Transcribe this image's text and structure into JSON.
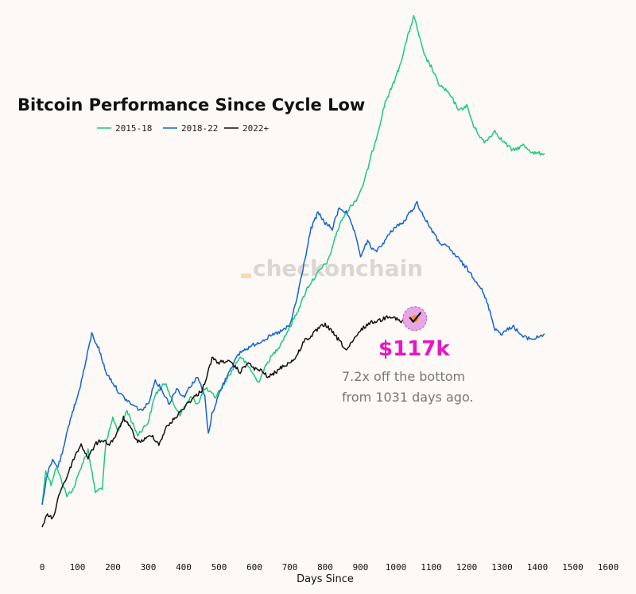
{
  "chart_data": {
    "type": "line",
    "title": "Bitcoin Performance Since Cycle Low",
    "xlabel": "Days Since",
    "ylabel": "",
    "xlim": [
      0,
      1600
    ],
    "x_ticks": [
      "0",
      "100",
      "200",
      "300",
      "400",
      "500",
      "600",
      "700",
      "800",
      "900",
      "1000",
      "1100",
      "1200",
      "1300",
      "1400",
      "1500",
      "1600"
    ],
    "y_scale": "log",
    "ylim": [
      0.7,
      150
    ],
    "grid": false,
    "legend_position": "top-left",
    "series": [
      {
        "name": "2015-18",
        "color": "#1dc97e",
        "points": [
          [
            0,
            1.1
          ],
          [
            10,
            1.55
          ],
          [
            25,
            1.35
          ],
          [
            40,
            1.6
          ],
          [
            55,
            1.4
          ],
          [
            70,
            1.2
          ],
          [
            90,
            1.3
          ],
          [
            110,
            1.6
          ],
          [
            130,
            1.9
          ],
          [
            150,
            1.25
          ],
          [
            170,
            1.3
          ],
          [
            180,
            2.0
          ],
          [
            200,
            2.6
          ],
          [
            215,
            2.3
          ],
          [
            240,
            2.8
          ],
          [
            270,
            2.2
          ],
          [
            300,
            2.5
          ],
          [
            320,
            3.3
          ],
          [
            350,
            3.7
          ],
          [
            370,
            3.0
          ],
          [
            390,
            2.7
          ],
          [
            420,
            3.2
          ],
          [
            440,
            3.0
          ],
          [
            460,
            3.5
          ],
          [
            490,
            3.2
          ],
          [
            530,
            4.0
          ],
          [
            560,
            4.8
          ],
          [
            590,
            4.2
          ],
          [
            610,
            3.7
          ],
          [
            640,
            4.6
          ],
          [
            670,
            5.3
          ],
          [
            700,
            6.4
          ],
          [
            730,
            8.0
          ],
          [
            750,
            9.5
          ],
          [
            770,
            10.5
          ],
          [
            790,
            11.5
          ],
          [
            810,
            12.5
          ],
          [
            830,
            16
          ],
          [
            850,
            19
          ],
          [
            870,
            21
          ],
          [
            890,
            23
          ],
          [
            910,
            27
          ],
          [
            930,
            35
          ],
          [
            950,
            45
          ],
          [
            970,
            60
          ],
          [
            990,
            70
          ],
          [
            1010,
            85
          ],
          [
            1030,
            110
          ],
          [
            1050,
            140
          ],
          [
            1060,
            125
          ],
          [
            1080,
            95
          ],
          [
            1100,
            85
          ],
          [
            1120,
            72
          ],
          [
            1150,
            65
          ],
          [
            1180,
            55
          ],
          [
            1200,
            58
          ],
          [
            1220,
            47
          ],
          [
            1250,
            40
          ],
          [
            1280,
            45
          ],
          [
            1300,
            41
          ],
          [
            1330,
            37
          ],
          [
            1360,
            39
          ],
          [
            1390,
            36
          ],
          [
            1420,
            36
          ]
        ]
      },
      {
        "name": "2018-22",
        "color": "#1463d0",
        "points": [
          [
            0,
            1.1
          ],
          [
            15,
            1.5
          ],
          [
            30,
            1.7
          ],
          [
            45,
            1.6
          ],
          [
            60,
            1.9
          ],
          [
            80,
            2.6
          ],
          [
            100,
            3.2
          ],
          [
            120,
            4.3
          ],
          [
            140,
            6.0
          ],
          [
            160,
            5.2
          ],
          [
            180,
            4.1
          ],
          [
            200,
            3.7
          ],
          [
            220,
            3.3
          ],
          [
            250,
            3.0
          ],
          [
            280,
            2.8
          ],
          [
            300,
            3.0
          ],
          [
            320,
            3.8
          ],
          [
            340,
            3.4
          ],
          [
            360,
            3.0
          ],
          [
            380,
            3.5
          ],
          [
            400,
            3.2
          ],
          [
            420,
            3.6
          ],
          [
            440,
            3.9
          ],
          [
            460,
            3.2
          ],
          [
            470,
            2.2
          ],
          [
            480,
            2.7
          ],
          [
            500,
            3.3
          ],
          [
            530,
            4.2
          ],
          [
            560,
            5.0
          ],
          [
            600,
            5.4
          ],
          [
            640,
            5.8
          ],
          [
            680,
            6.2
          ],
          [
            700,
            6.5
          ],
          [
            720,
            8.5
          ],
          [
            740,
            12
          ],
          [
            760,
            17
          ],
          [
            780,
            20
          ],
          [
            800,
            18
          ],
          [
            820,
            17
          ],
          [
            840,
            21
          ],
          [
            860,
            20
          ],
          [
            880,
            17
          ],
          [
            900,
            13
          ],
          [
            920,
            15
          ],
          [
            940,
            13.5
          ],
          [
            960,
            14.5
          ],
          [
            980,
            16
          ],
          [
            1000,
            17.5
          ],
          [
            1020,
            18
          ],
          [
            1040,
            20
          ],
          [
            1060,
            22
          ],
          [
            1080,
            19
          ],
          [
            1100,
            17
          ],
          [
            1120,
            15
          ],
          [
            1150,
            14
          ],
          [
            1180,
            12.5
          ],
          [
            1210,
            11
          ],
          [
            1240,
            9.5
          ],
          [
            1260,
            8.0
          ],
          [
            1280,
            6.3
          ],
          [
            1300,
            6.0
          ],
          [
            1330,
            6.5
          ],
          [
            1360,
            5.8
          ],
          [
            1390,
            5.7
          ],
          [
            1420,
            6.0
          ]
        ]
      },
      {
        "name": "2022+",
        "color": "#111111",
        "points": [
          [
            0,
            0.88
          ],
          [
            15,
            1.0
          ],
          [
            30,
            0.95
          ],
          [
            50,
            1.25
          ],
          [
            70,
            1.45
          ],
          [
            90,
            1.75
          ],
          [
            110,
            2.0
          ],
          [
            130,
            1.75
          ],
          [
            150,
            2.0
          ],
          [
            170,
            2.1
          ],
          [
            190,
            2.0
          ],
          [
            210,
            2.2
          ],
          [
            230,
            2.6
          ],
          [
            250,
            2.35
          ],
          [
            270,
            2.05
          ],
          [
            290,
            2.1
          ],
          [
            310,
            2.2
          ],
          [
            330,
            2.0
          ],
          [
            350,
            2.35
          ],
          [
            370,
            2.55
          ],
          [
            390,
            2.75
          ],
          [
            410,
            3.0
          ],
          [
            430,
            3.2
          ],
          [
            450,
            3.4
          ],
          [
            465,
            3.9
          ],
          [
            480,
            4.7
          ],
          [
            500,
            4.5
          ],
          [
            520,
            4.6
          ],
          [
            540,
            4.4
          ],
          [
            560,
            4.1
          ],
          [
            580,
            4.5
          ],
          [
            600,
            4.25
          ],
          [
            620,
            4.15
          ],
          [
            640,
            3.9
          ],
          [
            660,
            4.1
          ],
          [
            680,
            4.35
          ],
          [
            700,
            4.5
          ],
          [
            720,
            4.8
          ],
          [
            740,
            5.6
          ],
          [
            760,
            5.85
          ],
          [
            780,
            6.3
          ],
          [
            800,
            6.6
          ],
          [
            820,
            6.1
          ],
          [
            840,
            5.6
          ],
          [
            860,
            5.1
          ],
          [
            880,
            5.6
          ],
          [
            900,
            6.2
          ],
          [
            920,
            6.6
          ],
          [
            940,
            6.8
          ],
          [
            960,
            6.9
          ],
          [
            980,
            7.2
          ],
          [
            1000,
            7.0
          ],
          [
            1015,
            6.7
          ],
          [
            1031,
            7.2
          ]
        ]
      }
    ],
    "annotation": {
      "price_label": "$117k",
      "line1": "7.2x off the bottom",
      "line2": "from 1031 days ago.",
      "x": 1031,
      "y": 7.2
    },
    "watermark": "checkonchain"
  }
}
